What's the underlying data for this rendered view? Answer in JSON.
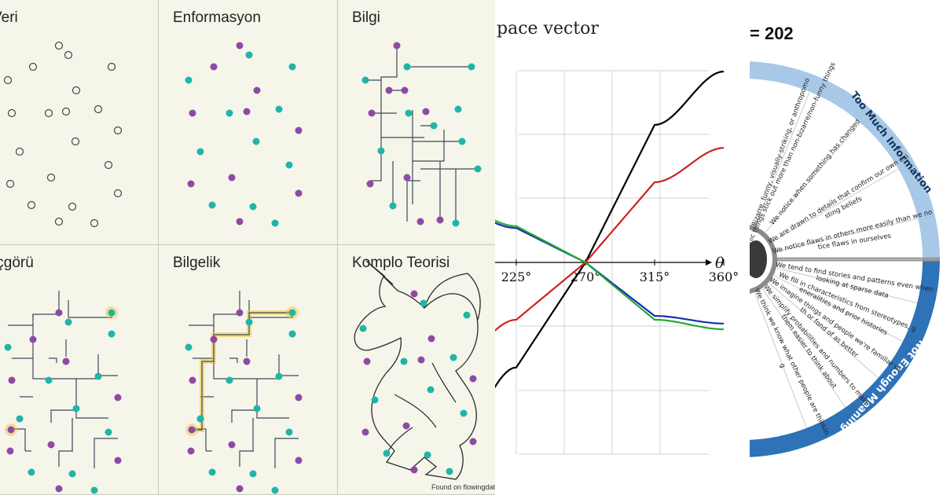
{
  "flow_panel": {
    "cells": [
      {
        "title": "Veri"
      },
      {
        "title": "Enformasyon"
      },
      {
        "title": "Bilgi"
      },
      {
        "title": "İçgörü"
      },
      {
        "title": "Bilgelik"
      },
      {
        "title": "Komplo Teorisi"
      }
    ],
    "credit": "Found on flowingdata",
    "colors": {
      "purple": "#8e4aa3",
      "teal": "#1fb5a8",
      "line": "#3b4a5a",
      "highlight": "#f2c232",
      "background": "#f6f5ea"
    }
  },
  "vector_chart": {
    "title": "pace vector",
    "axis_symbol": "θ",
    "chart_data": {
      "type": "line",
      "xlabel": "θ",
      "x_ticks": [
        "225°",
        "270°",
        "315°",
        "360°"
      ],
      "xlim": [
        180,
        360
      ],
      "ylim": [
        -1.2,
        1.2
      ],
      "grid": true,
      "series": [
        {
          "color": "#000000",
          "x": [
            180,
            225,
            270,
            315,
            360
          ],
          "y": [
            -1.0,
            -0.55,
            0.0,
            0.72,
            1.0
          ]
        },
        {
          "color": "#cc2222",
          "x": [
            180,
            225,
            270,
            315,
            360
          ],
          "y": [
            -0.55,
            -0.3,
            0.0,
            0.42,
            0.6
          ]
        },
        {
          "color": "#1a2fb0",
          "x": [
            180,
            225,
            270,
            315,
            360
          ],
          "y": [
            0.3,
            0.18,
            0.0,
            -0.28,
            -0.32
          ]
        },
        {
          "color": "#22aa33",
          "x": [
            180,
            225,
            270,
            315,
            360
          ],
          "y": [
            0.32,
            0.19,
            0.0,
            -0.3,
            -0.35
          ]
        }
      ]
    }
  },
  "bias_wheel": {
    "top_text": "= 202",
    "sections": [
      {
        "name": "Too Much Information",
        "color": "#a8c8e8",
        "items": [
          "Bizarre, funny, visually-striking, or anthropomorphic things stick out more than non-bizarre/non-funny things",
          "We notice when something has changed",
          "We are drawn to details that confirm our own existing beliefs",
          "We notice flaws in others more easily than we notice flaws in ourselves"
        ]
      },
      {
        "name": "Not Enough Meaning",
        "color": "#2e72b8",
        "items": [
          "We tend to find stories and patterns even when looking at sparse data",
          "We fill in characteristics from stereotypes, generalities and prior histories",
          "We imagine things and people we're familiar with or fond of as better",
          "We simplify probabilities and numbers to make them easier to think about",
          "We think we know what other people are thinking"
        ]
      }
    ]
  }
}
